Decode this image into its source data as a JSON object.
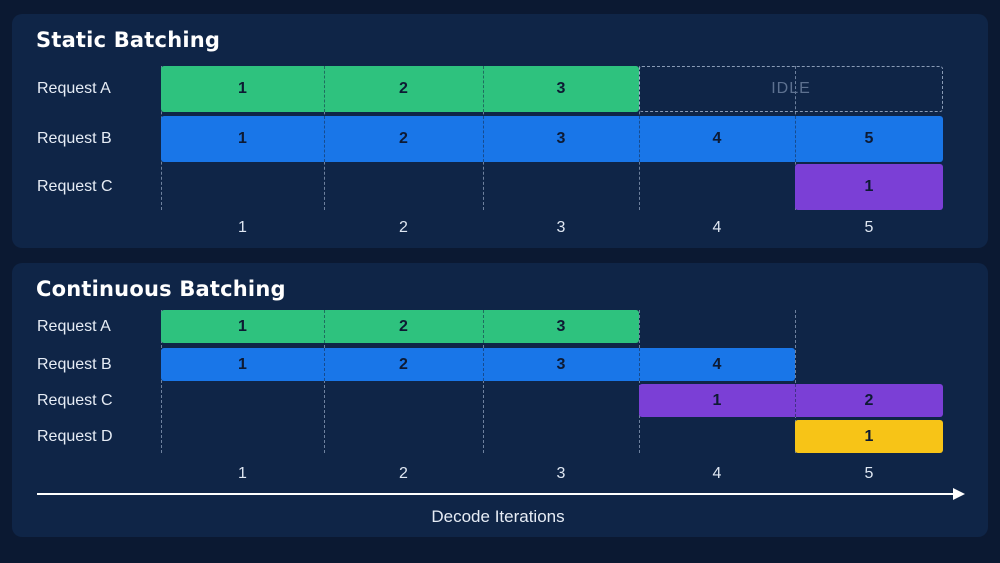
{
  "colors": {
    "A": "#2ec27e",
    "B": "#1976e8",
    "C": "#7b3fd6",
    "D": "#f7c417"
  },
  "static": {
    "title": "Static Batching",
    "rows": [
      {
        "label": "Request A",
        "color_key": "A",
        "tokens": [
          1,
          2,
          3
        ],
        "start": 1,
        "end": 3,
        "idle": true,
        "idle_label": "IDLE"
      },
      {
        "label": "Request B",
        "color_key": "B",
        "tokens": [
          1,
          2,
          3,
          4,
          5
        ],
        "start": 1,
        "end": 5
      },
      {
        "label": "Request C",
        "color_key": "C",
        "tokens": [
          1
        ],
        "start": 5,
        "end": 5
      }
    ],
    "ticks": [
      "1",
      "2",
      "3",
      "4",
      "5"
    ]
  },
  "continuous": {
    "title": "Continuous Batching",
    "rows": [
      {
        "label": "Request A",
        "color_key": "A",
        "tokens": [
          1,
          2,
          3
        ],
        "start": 1,
        "end": 3
      },
      {
        "label": "Request B",
        "color_key": "B",
        "tokens": [
          1,
          2,
          3,
          4
        ],
        "start": 1,
        "end": 4
      },
      {
        "label": "Request C",
        "color_key": "C",
        "tokens": [
          1,
          2
        ],
        "start": 4,
        "end": 5
      },
      {
        "label": "Request D",
        "color_key": "D",
        "tokens": [
          1
        ],
        "start": 5,
        "end": 5
      }
    ],
    "ticks": [
      "1",
      "2",
      "3",
      "4",
      "5"
    ]
  },
  "axis": {
    "title": "Decode Iterations"
  }
}
